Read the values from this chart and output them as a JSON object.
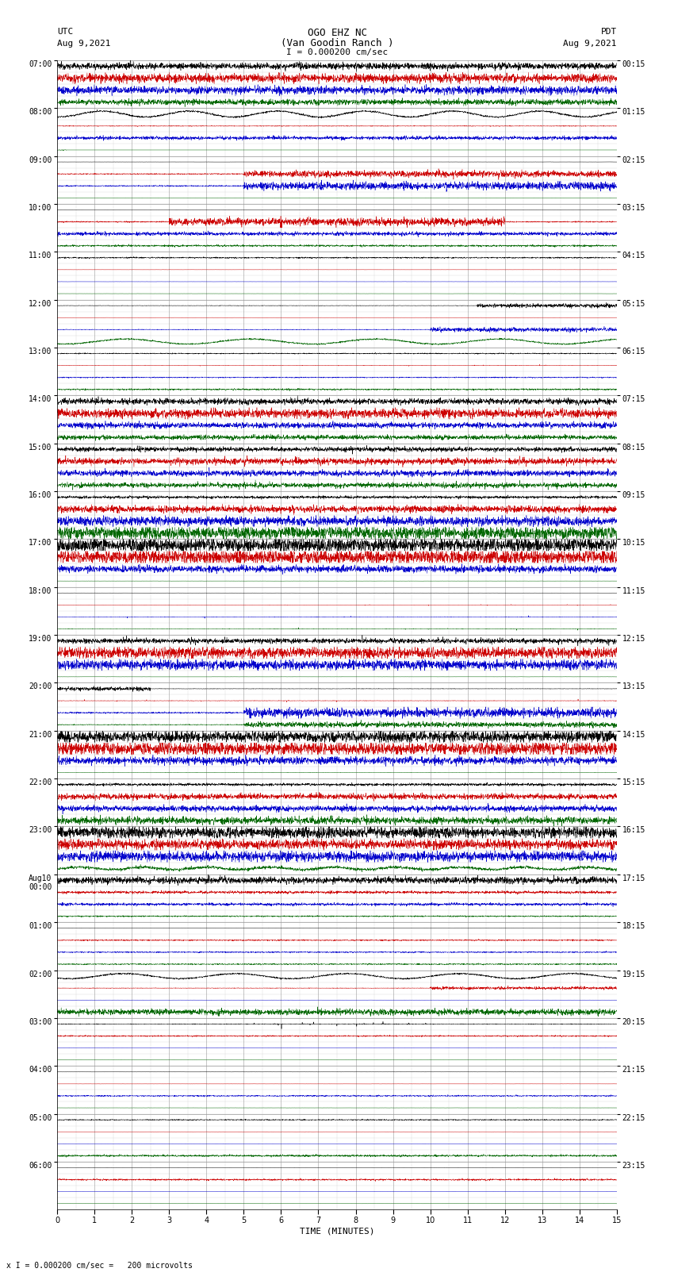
{
  "title_line1": "OGO EHZ NC",
  "title_line2": "(Van Goodin Ranch )",
  "title_line3": "I = 0.000200 cm/sec",
  "left_label_line1": "UTC",
  "left_label_line2": "Aug 9,2021",
  "right_label_line1": "PDT",
  "right_label_line2": "Aug 9,2021",
  "xlabel": "TIME (MINUTES)",
  "bottom_note": "x I = 0.000200 cm/sec =   200 microvolts",
  "xlim": [
    0,
    15
  ],
  "xticks": [
    0,
    1,
    2,
    3,
    4,
    5,
    6,
    7,
    8,
    9,
    10,
    11,
    12,
    13,
    14,
    15
  ],
  "bg_color": "#ffffff",
  "grid_color": "#999999",
  "fig_width": 8.5,
  "fig_height": 16.13,
  "colors": {
    "black": "#000000",
    "red": "#cc0000",
    "blue": "#0000cc",
    "green": "#006600"
  },
  "hour_blocks": [
    {
      "utc": "07:00",
      "pdt": "00:15",
      "traces": [
        {
          "color": "black",
          "amp": 0.25,
          "style": "busy_high"
        },
        {
          "color": "red",
          "amp": 0.35,
          "style": "busy_high"
        },
        {
          "color": "blue",
          "amp": 0.3,
          "style": "busy_high"
        },
        {
          "color": "green",
          "amp": 0.25,
          "style": "busy_medium"
        }
      ]
    },
    {
      "utc": "08:00",
      "pdt": "01:15",
      "traces": [
        {
          "color": "black",
          "amp": 0.35,
          "style": "wave_slow"
        },
        {
          "color": "red",
          "amp": 0.25,
          "style": "flat_line"
        },
        {
          "color": "blue",
          "amp": 0.2,
          "style": "quiet"
        },
        {
          "color": "green",
          "amp": 0.05,
          "style": "dot_only"
        }
      ]
    },
    {
      "utc": "09:00",
      "pdt": "02:15",
      "traces": [
        {
          "color": "black",
          "amp": 0.05,
          "style": "flat_line"
        },
        {
          "color": "red",
          "amp": 0.25,
          "style": "partial_burst"
        },
        {
          "color": "blue",
          "amp": 0.3,
          "style": "partial_burst"
        },
        {
          "color": "green",
          "amp": 0.05,
          "style": "flat_line"
        }
      ]
    },
    {
      "utc": "10:00",
      "pdt": "03:15",
      "traces": [
        {
          "color": "black",
          "amp": 0.05,
          "style": "flat_line"
        },
        {
          "color": "red",
          "amp": 0.3,
          "style": "seismic_burst"
        },
        {
          "color": "blue",
          "amp": 0.2,
          "style": "quiet"
        },
        {
          "color": "green",
          "amp": 0.1,
          "style": "quiet"
        }
      ]
    },
    {
      "utc": "11:00",
      "pdt": "04:15",
      "traces": [
        {
          "color": "black",
          "amp": 0.1,
          "style": "very_quiet"
        },
        {
          "color": "red",
          "amp": 0.05,
          "style": "flat_line"
        },
        {
          "color": "blue",
          "amp": 0.05,
          "style": "flat_line"
        },
        {
          "color": "green",
          "amp": 0.05,
          "style": "flat_line"
        }
      ]
    },
    {
      "utc": "12:00",
      "pdt": "05:15",
      "traces": [
        {
          "color": "black",
          "amp": 0.15,
          "style": "quiet_spike_end"
        },
        {
          "color": "red",
          "amp": 0.05,
          "style": "flat_line"
        },
        {
          "color": "blue",
          "amp": 0.2,
          "style": "partial_late"
        },
        {
          "color": "green",
          "amp": 0.3,
          "style": "wave_slow"
        }
      ]
    },
    {
      "utc": "13:00",
      "pdt": "06:15",
      "traces": [
        {
          "color": "black",
          "amp": 0.08,
          "style": "very_quiet"
        },
        {
          "color": "red",
          "amp": 0.08,
          "style": "dots_sparse"
        },
        {
          "color": "blue",
          "amp": 0.08,
          "style": "very_quiet"
        },
        {
          "color": "green",
          "amp": 0.12,
          "style": "very_quiet"
        }
      ]
    },
    {
      "utc": "14:00",
      "pdt": "07:15",
      "traces": [
        {
          "color": "black",
          "amp": 0.25,
          "style": "busy_medium"
        },
        {
          "color": "red",
          "amp": 0.35,
          "style": "busy_high"
        },
        {
          "color": "blue",
          "amp": 0.25,
          "style": "busy_medium"
        },
        {
          "color": "green",
          "amp": 0.2,
          "style": "busy_medium"
        }
      ]
    },
    {
      "utc": "15:00",
      "pdt": "08:15",
      "traces": [
        {
          "color": "black",
          "amp": 0.2,
          "style": "busy_medium"
        },
        {
          "color": "red",
          "amp": 0.4,
          "style": "spiky_high"
        },
        {
          "color": "blue",
          "amp": 0.25,
          "style": "busy_medium"
        },
        {
          "color": "green",
          "amp": 0.3,
          "style": "spiky_high"
        }
      ]
    },
    {
      "utc": "16:00",
      "pdt": "09:15",
      "traces": [
        {
          "color": "black",
          "amp": 0.15,
          "style": "quiet"
        },
        {
          "color": "red",
          "amp": 0.3,
          "style": "busy_medium"
        },
        {
          "color": "blue",
          "amp": 0.35,
          "style": "busy_high"
        },
        {
          "color": "green",
          "amp": 0.45,
          "style": "very_busy"
        }
      ]
    },
    {
      "utc": "17:00",
      "pdt": "10:15",
      "traces": [
        {
          "color": "black",
          "amp": 0.5,
          "style": "very_busy"
        },
        {
          "color": "red",
          "amp": 0.5,
          "style": "very_busy"
        },
        {
          "color": "blue",
          "amp": 0.3,
          "style": "busy_medium"
        },
        {
          "color": "green",
          "amp": 0.05,
          "style": "flat_line"
        }
      ]
    },
    {
      "utc": "18:00",
      "pdt": "11:15",
      "traces": [
        {
          "color": "black",
          "amp": 0.05,
          "style": "flat_line"
        },
        {
          "color": "red",
          "amp": 0.05,
          "style": "dots_sparse"
        },
        {
          "color": "blue",
          "amp": 0.1,
          "style": "dots_sparse"
        },
        {
          "color": "green",
          "amp": 0.1,
          "style": "dots_sparse"
        }
      ]
    },
    {
      "utc": "19:00",
      "pdt": "12:15",
      "traces": [
        {
          "color": "black",
          "amp": 0.3,
          "style": "spiky_high"
        },
        {
          "color": "red",
          "amp": 0.4,
          "style": "very_busy"
        },
        {
          "color": "blue",
          "amp": 0.35,
          "style": "very_busy"
        },
        {
          "color": "green",
          "amp": 0.05,
          "style": "flat_line"
        }
      ]
    },
    {
      "utc": "20:00",
      "pdt": "13:15",
      "traces": [
        {
          "color": "black",
          "amp": 0.15,
          "style": "spike_start"
        },
        {
          "color": "red",
          "amp": 0.1,
          "style": "dots_sparse"
        },
        {
          "color": "blue",
          "amp": 0.35,
          "style": "partial_burst"
        },
        {
          "color": "green",
          "amp": 0.2,
          "style": "partial_burst"
        }
      ]
    },
    {
      "utc": "21:00",
      "pdt": "14:15",
      "traces": [
        {
          "color": "black",
          "amp": 0.4,
          "style": "very_busy"
        },
        {
          "color": "red",
          "amp": 0.45,
          "style": "very_busy"
        },
        {
          "color": "blue",
          "amp": 0.3,
          "style": "busy_high"
        },
        {
          "color": "green",
          "amp": 0.1,
          "style": "flat_line"
        }
      ]
    },
    {
      "utc": "22:00",
      "pdt": "15:15",
      "traces": [
        {
          "color": "black",
          "amp": 0.15,
          "style": "quiet"
        },
        {
          "color": "red",
          "amp": 0.25,
          "style": "busy_medium"
        },
        {
          "color": "blue",
          "amp": 0.25,
          "style": "busy_medium"
        },
        {
          "color": "green",
          "amp": 0.3,
          "style": "busy_medium"
        }
      ]
    },
    {
      "utc": "23:00",
      "pdt": "16:15",
      "traces": [
        {
          "color": "black",
          "amp": 0.4,
          "style": "very_busy"
        },
        {
          "color": "red",
          "amp": 0.35,
          "style": "very_busy"
        },
        {
          "color": "blue",
          "amp": 0.35,
          "style": "very_busy"
        },
        {
          "color": "green",
          "amp": 0.2,
          "style": "wave_slow_noisy"
        }
      ]
    },
    {
      "utc": "Aug10\n00:00",
      "pdt": "17:15",
      "traces": [
        {
          "color": "black",
          "amp": 0.3,
          "style": "busy_medium"
        },
        {
          "color": "red",
          "amp": 0.15,
          "style": "quiet"
        },
        {
          "color": "blue",
          "amp": 0.15,
          "style": "quiet"
        },
        {
          "color": "green",
          "amp": 0.1,
          "style": "very_quiet"
        }
      ]
    },
    {
      "utc": "01:00",
      "pdt": "18:15",
      "traces": [
        {
          "color": "black",
          "amp": 0.05,
          "style": "flat_line"
        },
        {
          "color": "red",
          "amp": 0.1,
          "style": "very_quiet"
        },
        {
          "color": "blue",
          "amp": 0.1,
          "style": "very_quiet"
        },
        {
          "color": "green",
          "amp": 0.1,
          "style": "very_quiet"
        }
      ]
    },
    {
      "utc": "02:00",
      "pdt": "19:15",
      "traces": [
        {
          "color": "black",
          "amp": 0.3,
          "style": "wave_slow"
        },
        {
          "color": "red",
          "amp": 0.15,
          "style": "partial_late"
        },
        {
          "color": "blue",
          "amp": 0.05,
          "style": "flat_line"
        },
        {
          "color": "green",
          "amp": 0.25,
          "style": "busy_medium"
        }
      ]
    },
    {
      "utc": "03:00",
      "pdt": "20:15",
      "traces": [
        {
          "color": "black",
          "amp": 0.15,
          "style": "spiky_mid"
        },
        {
          "color": "red",
          "amp": 0.1,
          "style": "very_quiet"
        },
        {
          "color": "blue",
          "amp": 0.05,
          "style": "flat_line"
        },
        {
          "color": "green",
          "amp": 0.05,
          "style": "flat_line"
        }
      ]
    },
    {
      "utc": "04:00",
      "pdt": "21:15",
      "traces": [
        {
          "color": "black",
          "amp": 0.05,
          "style": "flat_line"
        },
        {
          "color": "red",
          "amp": 0.05,
          "style": "flat_line"
        },
        {
          "color": "blue",
          "amp": 0.1,
          "style": "very_quiet"
        },
        {
          "color": "green",
          "amp": 0.05,
          "style": "flat_line"
        }
      ]
    },
    {
      "utc": "05:00",
      "pdt": "22:15",
      "traces": [
        {
          "color": "black",
          "amp": 0.08,
          "style": "very_quiet"
        },
        {
          "color": "red",
          "amp": 0.05,
          "style": "flat_line"
        },
        {
          "color": "blue",
          "amp": 0.05,
          "style": "flat_line"
        },
        {
          "color": "green",
          "amp": 0.15,
          "style": "very_quiet"
        }
      ]
    },
    {
      "utc": "06:00",
      "pdt": "23:15",
      "traces": [
        {
          "color": "black",
          "amp": 0.05,
          "style": "flat_line"
        },
        {
          "color": "red",
          "amp": 0.4,
          "style": "flat_line_dotted"
        },
        {
          "color": "blue",
          "amp": 0.05,
          "style": "flat_line"
        },
        {
          "color": "green",
          "amp": 0.05,
          "style": "flat_line"
        }
      ]
    }
  ]
}
